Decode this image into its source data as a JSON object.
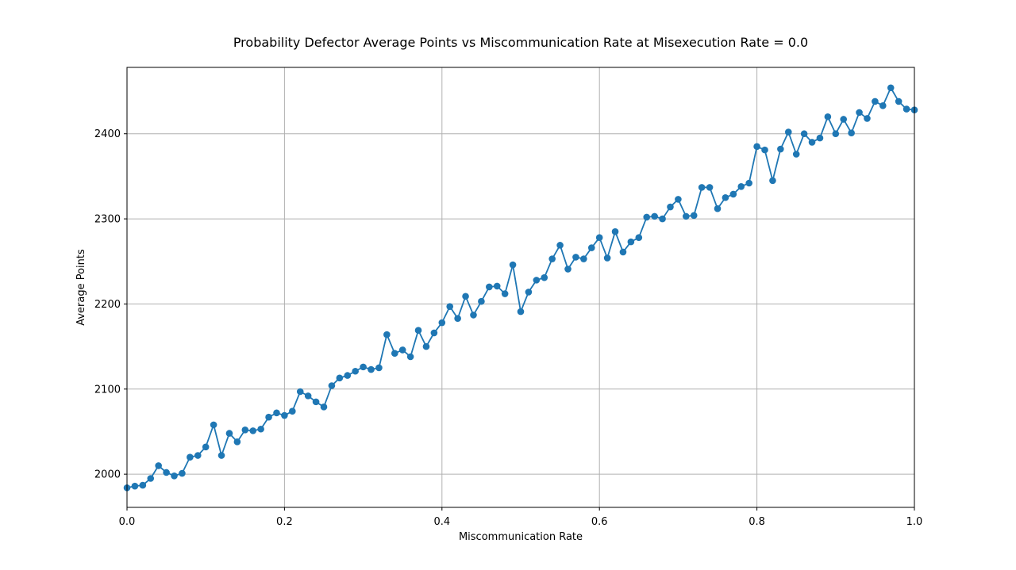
{
  "chart_data": {
    "type": "line",
    "title": "Probability Defector Average Points vs Miscommunication Rate at Misexecution Rate = 0.0",
    "xlabel": "Miscommunication Rate",
    "ylabel": "Average Points",
    "xlim": [
      0.0,
      1.0
    ],
    "ylim": [
      1961,
      2478
    ],
    "x_ticks": [
      0.0,
      0.2,
      0.4,
      0.6,
      0.8,
      1.0
    ],
    "x_tick_labels": [
      "0.0",
      "0.2",
      "0.4",
      "0.6",
      "0.8",
      "1.0"
    ],
    "y_ticks": [
      2000,
      2100,
      2200,
      2300,
      2400
    ],
    "y_tick_labels": [
      "2000",
      "2100",
      "2200",
      "2300",
      "2400"
    ],
    "grid": true,
    "marker": "circle",
    "color": "#1f77b4",
    "series": [
      {
        "x": [
          0.0,
          0.01,
          0.02,
          0.03,
          0.04,
          0.05,
          0.06,
          0.07,
          0.08,
          0.09,
          0.1,
          0.11,
          0.12,
          0.13,
          0.14,
          0.15,
          0.16,
          0.17,
          0.18,
          0.19,
          0.2,
          0.21,
          0.22,
          0.23,
          0.24,
          0.25,
          0.26,
          0.27,
          0.28,
          0.29,
          0.3,
          0.31,
          0.32,
          0.33,
          0.34,
          0.35,
          0.36,
          0.37,
          0.38,
          0.39,
          0.4,
          0.41,
          0.42,
          0.43,
          0.44,
          0.45,
          0.46,
          0.47,
          0.48,
          0.49,
          0.5,
          0.51,
          0.52,
          0.53,
          0.54,
          0.55,
          0.56,
          0.57,
          0.58,
          0.59,
          0.6,
          0.61,
          0.62,
          0.63,
          0.64,
          0.65,
          0.66,
          0.67,
          0.68,
          0.69,
          0.7,
          0.71,
          0.72,
          0.73,
          0.74,
          0.75,
          0.76,
          0.77,
          0.78,
          0.79,
          0.8,
          0.81,
          0.82,
          0.83,
          0.84,
          0.85,
          0.86,
          0.87,
          0.88,
          0.89,
          0.9,
          0.91,
          0.92,
          0.93,
          0.94,
          0.95,
          0.96,
          0.97,
          0.98,
          0.99,
          1.0
        ],
        "y": [
          1984,
          1986,
          1987,
          1995,
          2010,
          2002,
          1998,
          2001,
          2020,
          2022,
          2032,
          2058,
          2022,
          2048,
          2038,
          2052,
          2051,
          2053,
          2067,
          2072,
          2069,
          2074,
          2097,
          2092,
          2085,
          2079,
          2104,
          2113,
          2116,
          2121,
          2126,
          2123,
          2125,
          2164,
          2142,
          2146,
          2138,
          2169,
          2150,
          2166,
          2178,
          2197,
          2183,
          2209,
          2187,
          2203,
          2220,
          2221,
          2212,
          2246,
          2191,
          2214,
          2228,
          2231,
          2253,
          2269,
          2241,
          2255,
          2253,
          2266,
          2278,
          2254,
          2285,
          2261,
          2273,
          2278,
          2302,
          2303,
          2300,
          2314,
          2323,
          2303,
          2304,
          2337,
          2337,
          2312,
          2325,
          2329,
          2338,
          2342,
          2385,
          2381,
          2345,
          2382,
          2402,
          2376,
          2400,
          2390,
          2395,
          2420,
          2400,
          2417,
          2401,
          2425,
          2418,
          2438,
          2433,
          2454,
          2438,
          2429,
          2428
        ]
      }
    ]
  }
}
